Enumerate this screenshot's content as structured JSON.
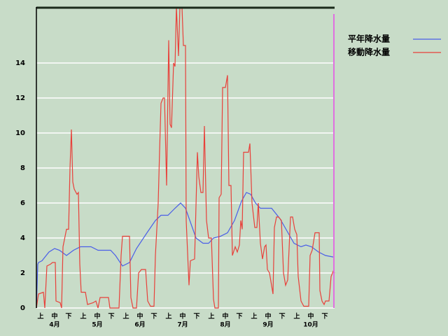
{
  "chart_data": {
    "type": "line",
    "xlim": [
      0,
      213
    ],
    "ylim": [
      0,
      17.2
    ],
    "yticks": [
      0,
      2,
      4,
      6,
      8,
      10,
      12,
      14
    ],
    "grid": true,
    "xticks": [
      {
        "value": 3,
        "label": "上"
      },
      {
        "value": 13,
        "label": "中"
      },
      {
        "value": 23,
        "label": "下"
      },
      {
        "value": 33.5,
        "label": "上"
      },
      {
        "value": 43.5,
        "label": "中"
      },
      {
        "value": 53.5,
        "label": "下"
      },
      {
        "value": 64,
        "label": "上"
      },
      {
        "value": 74,
        "label": "中"
      },
      {
        "value": 84,
        "label": "下"
      },
      {
        "value": 94.5,
        "label": "上"
      },
      {
        "value": 104.5,
        "label": "中"
      },
      {
        "value": 114.5,
        "label": "下"
      },
      {
        "value": 125,
        "label": "上"
      },
      {
        "value": 135,
        "label": "中"
      },
      {
        "value": 145,
        "label": "下"
      },
      {
        "value": 155.5,
        "label": "上"
      },
      {
        "value": 165.5,
        "label": "中"
      },
      {
        "value": 175.5,
        "label": "下"
      },
      {
        "value": 186,
        "label": "上"
      },
      {
        "value": 196,
        "label": "中"
      },
      {
        "value": 206,
        "label": "下"
      }
    ],
    "months": [
      "4月",
      "5月",
      "6月",
      "7月",
      "8月",
      "9月",
      "10月"
    ],
    "series": [
      {
        "name": "平年降水量",
        "color": "#4a5ee8",
        "x": [
          0,
          1,
          1.5,
          4,
          9,
          13,
          16.5,
          21.5,
          26.5,
          31.5,
          39,
          44,
          53,
          56.5,
          61.5,
          66.5,
          71.5,
          79,
          85,
          89,
          94,
          99,
          103,
          106.5,
          114,
          119,
          123,
          126.5,
          131.5,
          136.5,
          141.5,
          146.5,
          150,
          153,
          156.5,
          160,
          168,
          174,
          179,
          184,
          189,
          192.5,
          196.5,
          201.5,
          206.5,
          213
        ],
        "values": [
          0,
          2.5,
          2.6,
          2.7,
          3.2,
          3.4,
          3.3,
          3.0,
          3.3,
          3.5,
          3.5,
          3.3,
          3.3,
          3.0,
          2.4,
          2.6,
          3.4,
          4.3,
          5.0,
          5.3,
          5.3,
          5.7,
          6.0,
          5.7,
          4.0,
          3.7,
          3.7,
          4.0,
          4.1,
          4.3,
          5.0,
          6.1,
          6.6,
          6.5,
          6.0,
          5.7,
          5.7,
          5.1,
          4.4,
          3.7,
          3.5,
          3.6,
          3.5,
          3.2,
          3.0,
          2.9
        ]
      },
      {
        "name": "移動降水量",
        "color": "#e8403a",
        "x": [
          0,
          1.5,
          5,
          6,
          7.5,
          10,
          11.5,
          13.5,
          14,
          17,
          18,
          19,
          21.5,
          23,
          24,
          25,
          26,
          27,
          29,
          30,
          31,
          32,
          35,
          36.5,
          40.5,
          42.5,
          44,
          45.5,
          51.5,
          52.5,
          59,
          60.5,
          61.5,
          66.5,
          67.5,
          69,
          71.5,
          73,
          75,
          78,
          79.5,
          81.5,
          84,
          85,
          87,
          88,
          89,
          90.5,
          91.5,
          93,
          94.5,
          95.5,
          96.5,
          98,
          99,
          100,
          101.5,
          102.5,
          104,
          105,
          106.5,
          107,
          109,
          110,
          113,
          115,
          116,
          117.5,
          119,
          120,
          121.5,
          123,
          125,
          126.5,
          127.5,
          130,
          130.5,
          132,
          133,
          135,
          136.5,
          137.5,
          139,
          140,
          142,
          143.5,
          145,
          146,
          147,
          148,
          151.5,
          152.5,
          154,
          156,
          157.5,
          158.5,
          160,
          161.5,
          163,
          164,
          165,
          166.5,
          169,
          170,
          171.5,
          173,
          175,
          176.5,
          178,
          179.5,
          181.5,
          183,
          184.5,
          186,
          187,
          189,
          191,
          194.5,
          195.5,
          197,
          199,
          202,
          202.5,
          204,
          205.5,
          206.5,
          209,
          210.5,
          212,
          213
        ],
        "values": [
          0,
          0.8,
          0.9,
          0,
          2.4,
          2.5,
          2.6,
          2.6,
          0.4,
          0.3,
          0,
          3.5,
          4.5,
          4.5,
          8,
          10.2,
          7.2,
          6.8,
          6.5,
          6.6,
          2.5,
          0.9,
          0.9,
          0.2,
          0.3,
          0.4,
          0,
          0.6,
          0.6,
          0,
          0,
          3,
          4.1,
          4.1,
          0.6,
          0,
          0,
          2,
          2.2,
          2.2,
          0.4,
          0.1,
          0.1,
          3,
          6,
          9,
          11.7,
          12,
          12,
          7,
          15.3,
          10.5,
          10.3,
          14,
          13.8,
          17.2,
          14.4,
          17.2,
          17.2,
          15,
          15,
          5,
          1.3,
          2.7,
          2.8,
          8.9,
          7.5,
          6.6,
          6.6,
          10.4,
          5,
          4,
          4,
          0.5,
          0,
          0,
          6.3,
          6.5,
          12.6,
          12.6,
          13.3,
          7,
          7,
          3,
          3.5,
          3.2,
          3.6,
          5,
          4.5,
          8.9,
          8.9,
          9.4,
          6,
          4.6,
          4.6,
          6,
          3.7,
          2.8,
          3.5,
          3.6,
          2.2,
          2.0,
          0.8,
          4.6,
          5.2,
          5.2,
          5,
          2,
          1.3,
          1.6,
          5.2,
          5.2,
          4.5,
          4.2,
          1.8,
          0.4,
          0.1,
          0.1,
          3,
          3.3,
          4.3,
          4.3,
          1,
          0.4,
          0.2,
          0.4,
          0.4,
          1.8,
          2.1,
          2.0
        ]
      }
    ]
  }
}
